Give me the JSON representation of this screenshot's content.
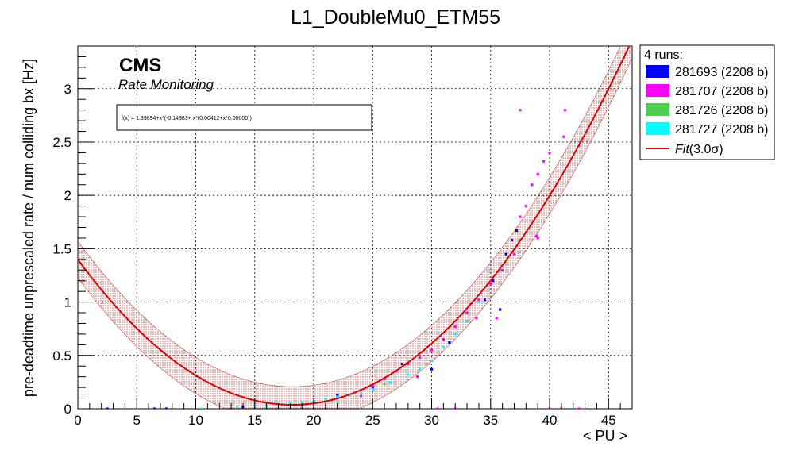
{
  "title": "L1_DoubleMu0_ETM55",
  "cms_label": "CMS",
  "cms_sublabel": "Rate Monitoring",
  "fit_formula": "f(x) = 1.39894+x*(-0.14983+ x*(0.00412+x*0.00000))",
  "legend": {
    "header": "4 runs:",
    "fit_label_prefix": "Fit",
    "fit_label_value": "(3.0σ)"
  },
  "colors": {
    "281693": "#0000ff",
    "281707": "#ff00ff",
    "281726": "#4fcd4f",
    "281727": "#00ffff",
    "fit": "#e00000",
    "band": "#b00000"
  },
  "chart_data": {
    "type": "scatter",
    "title": "L1_DoubleMu0_ETM55",
    "xlabel": "< PU >",
    "ylabel": "pre-deadtime unprescaled rate / num colliding bx [Hz]",
    "xlim": [
      0,
      47
    ],
    "ylim": [
      0,
      3.4
    ],
    "xticks": [
      "0",
      "5",
      "10",
      "15",
      "20",
      "25",
      "30",
      "35",
      "40",
      "45"
    ],
    "yticks": [
      "0",
      "0.5",
      "1",
      "1.5",
      "2",
      "2.5",
      "3"
    ],
    "grid": true,
    "legend_position": "right",
    "series": [
      {
        "name": "281693 (2208 b)",
        "color": "#0000ff",
        "points": [
          [
            2.5,
            0.0
          ],
          [
            6.5,
            0.0
          ],
          [
            7.5,
            0.0
          ],
          [
            14,
            0.02
          ],
          [
            16,
            0.03
          ],
          [
            22,
            0.13
          ],
          [
            25,
            0.2
          ],
          [
            27.5,
            0.42
          ],
          [
            30,
            0.37
          ],
          [
            31.5,
            0.62
          ],
          [
            33,
            0.82
          ],
          [
            34.5,
            1.02
          ],
          [
            35.2,
            1.2
          ],
          [
            35.8,
            0.93
          ],
          [
            36.3,
            1.45
          ],
          [
            36.8,
            1.58
          ],
          [
            37.2,
            1.67
          ]
        ]
      },
      {
        "name": "281707 (2208 b)",
        "color": "#ff00ff",
        "points": [
          [
            24,
            0.12
          ],
          [
            25,
            0.22
          ],
          [
            26,
            0.28
          ],
          [
            27,
            0.35
          ],
          [
            28,
            0.42
          ],
          [
            28.8,
            0.3
          ],
          [
            29,
            0.48
          ],
          [
            30,
            0.55
          ],
          [
            31,
            0.65
          ],
          [
            32,
            0.77
          ],
          [
            33,
            0.9
          ],
          [
            33.8,
            0.85
          ],
          [
            34,
            1.02
          ],
          [
            35,
            1.17
          ],
          [
            35.5,
            0.85
          ],
          [
            36,
            1.3
          ],
          [
            37,
            1.45
          ],
          [
            37.5,
            1.8
          ],
          [
            38,
            1.9
          ],
          [
            38.5,
            2.1
          ],
          [
            39,
            2.2
          ],
          [
            39.5,
            2.32
          ],
          [
            40,
            2.4
          ],
          [
            37.5,
            2.8
          ],
          [
            39,
            1.6
          ],
          [
            41.3,
            2.8
          ],
          [
            41.2,
            2.55
          ],
          [
            38.9,
            1.62
          ],
          [
            40,
            0.0
          ],
          [
            41,
            0.0
          ],
          [
            42.5,
            0.0
          ],
          [
            30.5,
            0.0
          ],
          [
            32,
            0.0
          ]
        ]
      },
      {
        "name": "281726 (2208 b)",
        "color": "#4fcd4f",
        "points": [
          [
            25,
            0.18
          ],
          [
            26,
            0.23
          ]
        ]
      },
      {
        "name": "281727 (2208 b)",
        "color": "#00ffff",
        "points": [
          [
            10.5,
            0.0
          ],
          [
            13.5,
            0.02
          ],
          [
            15,
            0.03
          ],
          [
            16,
            0.03
          ],
          [
            17,
            0.04
          ],
          [
            18,
            0.04
          ],
          [
            19,
            0.06
          ],
          [
            20,
            0.07
          ],
          [
            21,
            0.09
          ],
          [
            22,
            0.11
          ],
          [
            23,
            0.13
          ],
          [
            24,
            0.15
          ],
          [
            25,
            0.18
          ],
          [
            26.5,
            0.25
          ],
          [
            28,
            0.32
          ],
          [
            29,
            0.38
          ],
          [
            30,
            0.45
          ],
          [
            31,
            0.58
          ],
          [
            32,
            0.7
          ],
          [
            33,
            0.82
          ],
          [
            34,
            1.0
          ]
        ]
      }
    ],
    "fit": {
      "name": "Fit(3.0σ)",
      "coefficients": [
        1.39894,
        -0.14983,
        0.00412,
        0.0
      ],
      "band_sigma": 0.17
    }
  }
}
